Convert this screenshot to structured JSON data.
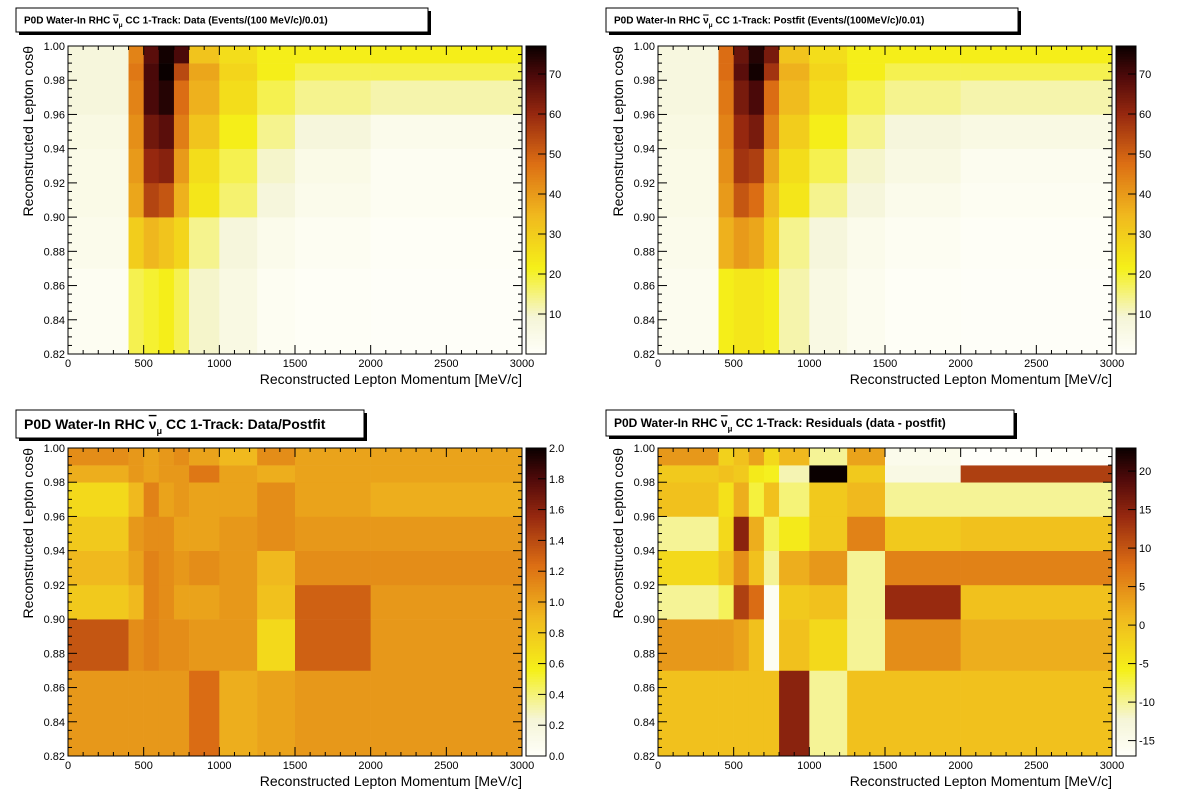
{
  "chart_data": [
    {
      "type": "heatmap",
      "title_parts": [
        "P0D Water-In RHC ",
        "ν",
        "μ",
        " CC 1-Track: Data (Events/(100 MeV/c)/0.01)"
      ],
      "xlabel": "Reconstructed Lepton Momentum [MeV/c]",
      "ylabel": "Reconstructed Lepton cosθ",
      "xlim": [
        0,
        3000
      ],
      "ylim": [
        0.82,
        1.0
      ],
      "zlim": [
        0,
        77
      ],
      "x_ticks": [
        "0",
        "500",
        "1000",
        "1500",
        "2000",
        "2500",
        "3000"
      ],
      "y_ticks": [
        "0.82",
        "0.84",
        "0.86",
        "0.88",
        "0.90",
        "0.92",
        "0.94",
        "0.96",
        "0.98",
        "1.00"
      ],
      "z_ticks": [
        "10",
        "20",
        "30",
        "40",
        "50",
        "60",
        "70"
      ],
      "x_edges": [
        0,
        400,
        500,
        600,
        700,
        800,
        1000,
        1250,
        1500,
        2000,
        3000
      ],
      "y_edges": [
        0.82,
        0.87,
        0.9,
        0.92,
        0.94,
        0.96,
        0.98,
        0.99,
        1.0
      ],
      "values": [
        [
          2,
          18,
          20,
          22,
          18,
          10,
          6,
          2,
          1,
          0.5
        ],
        [
          4,
          30,
          35,
          32,
          28,
          14,
          8,
          4,
          2,
          1
        ],
        [
          5,
          38,
          55,
          52,
          36,
          24,
          16,
          8,
          4,
          2
        ],
        [
          5,
          40,
          60,
          62,
          40,
          26,
          18,
          10,
          5,
          2
        ],
        [
          6,
          42,
          65,
          68,
          45,
          32,
          22,
          14,
          8,
          4
        ],
        [
          8,
          44,
          70,
          74,
          48,
          36,
          26,
          18,
          14,
          12
        ],
        [
          8,
          46,
          70,
          77,
          54,
          38,
          28,
          22,
          18,
          18
        ],
        [
          8,
          44,
          68,
          76,
          70,
          32,
          26,
          22,
          22,
          22
        ]
      ]
    },
    {
      "type": "heatmap",
      "title_parts": [
        "P0D Water-In RHC ",
        "ν",
        "μ",
        " CC 1-Track: Postfit (Events/(100MeV/c)/0.01)"
      ],
      "xlabel": "Reconstructed Lepton Momentum [MeV/c]",
      "ylabel": "Reconstructed Lepton cosθ",
      "xlim": [
        0,
        3000
      ],
      "ylim": [
        0.82,
        1.0
      ],
      "zlim": [
        0,
        77
      ],
      "x_ticks": [
        "0",
        "500",
        "1000",
        "1500",
        "2000",
        "2500",
        "3000"
      ],
      "y_ticks": [
        "0.82",
        "0.84",
        "0.86",
        "0.88",
        "0.90",
        "0.92",
        "0.94",
        "0.96",
        "0.98",
        "1.00"
      ],
      "z_ticks": [
        "10",
        "20",
        "30",
        "40",
        "50",
        "60",
        "70"
      ],
      "x_edges": [
        0,
        400,
        500,
        600,
        700,
        800,
        1000,
        1250,
        1500,
        2000,
        3000
      ],
      "y_edges": [
        0.82,
        0.87,
        0.9,
        0.92,
        0.94,
        0.96,
        0.98,
        0.99,
        1.0
      ],
      "values": [
        [
          3,
          22,
          24,
          24,
          22,
          12,
          6,
          3,
          1,
          0.5
        ],
        [
          4,
          36,
          40,
          38,
          30,
          14,
          8,
          4,
          2,
          1
        ],
        [
          5,
          40,
          52,
          48,
          34,
          24,
          14,
          8,
          4,
          2
        ],
        [
          5,
          42,
          58,
          56,
          38,
          26,
          18,
          10,
          6,
          3
        ],
        [
          6,
          44,
          60,
          64,
          44,
          30,
          22,
          14,
          8,
          6
        ],
        [
          7,
          46,
          64,
          70,
          48,
          34,
          26,
          18,
          14,
          12
        ],
        [
          7,
          48,
          68,
          76,
          58,
          36,
          28,
          22,
          18,
          18
        ],
        [
          7,
          48,
          66,
          74,
          64,
          32,
          26,
          22,
          22,
          22
        ]
      ]
    },
    {
      "type": "heatmap",
      "title_parts": [
        "P0D Water-In RHC ",
        "ν",
        "μ",
        " CC 1-Track: Data/Postfit"
      ],
      "xlabel": "Reconstructed Lepton Momentum [MeV/c]",
      "ylabel": "Reconstructed Lepton cosθ",
      "xlim": [
        0,
        3000
      ],
      "ylim": [
        0.82,
        1.0
      ],
      "zlim": [
        0,
        2.0
      ],
      "x_ticks": [
        "0",
        "500",
        "1000",
        "1500",
        "2000",
        "2500",
        "3000"
      ],
      "y_ticks": [
        "0.82",
        "0.84",
        "0.86",
        "0.88",
        "0.90",
        "0.92",
        "0.94",
        "0.96",
        "0.98",
        "1.00"
      ],
      "z_ticks": [
        "0.0",
        "0.2",
        "0.4",
        "0.6",
        "0.8",
        "1.0",
        "1.2",
        "1.4",
        "1.6",
        "1.8",
        "2.0"
      ],
      "x_edges": [
        0,
        400,
        500,
        600,
        700,
        800,
        1000,
        1250,
        1500,
        2000,
        3000
      ],
      "y_edges": [
        0.82,
        0.87,
        0.9,
        0.92,
        0.94,
        0.96,
        0.98,
        0.99,
        1.0
      ],
      "values": [
        [
          1.05,
          1.05,
          1.05,
          1.05,
          1.05,
          1.25,
          0.95,
          1.0,
          1.05,
          1.05
        ],
        [
          1.35,
          1.1,
          1.15,
          1.1,
          1.1,
          1.05,
          1.05,
          0.7,
          1.3,
          1.05
        ],
        [
          0.8,
          0.9,
          1.15,
          1.1,
          1.0,
          1.0,
          1.05,
          0.85,
          1.3,
          1.05
        ],
        [
          0.9,
          1.0,
          1.15,
          1.1,
          1.05,
          1.1,
          1.05,
          0.9,
          1.1,
          1.1
        ],
        [
          0.8,
          1.05,
          1.1,
          1.1,
          1.0,
          1.0,
          1.05,
          1.1,
          1.05,
          1.05
        ],
        [
          0.7,
          0.9,
          1.15,
          1.0,
          1.05,
          1.0,
          1.0,
          1.1,
          1.0,
          0.95
        ],
        [
          0.95,
          1.05,
          1.0,
          1.05,
          1.05,
          1.2,
          1.0,
          0.95,
          1.0,
          1.0
        ],
        [
          1.1,
          1.05,
          1.0,
          1.05,
          1.1,
          1.0,
          0.9,
          1.1,
          1.0,
          1.0
        ]
      ]
    },
    {
      "type": "heatmap",
      "title_parts": [
        "P0D Water-In RHC ",
        "ν",
        "μ",
        " CC 1-Track: Residuals (data - postfit)"
      ],
      "xlabel": "Reconstructed Lepton Momentum [MeV/c]",
      "ylabel": "Reconstructed Lepton cosθ",
      "xlim": [
        0,
        3000
      ],
      "ylim": [
        0.82,
        1.0
      ],
      "zlim": [
        -17,
        23
      ],
      "x_ticks": [
        "0",
        "500",
        "1000",
        "1500",
        "2000",
        "2500",
        "3000"
      ],
      "y_ticks": [
        "0.82",
        "0.84",
        "0.86",
        "0.88",
        "0.90",
        "0.92",
        "0.94",
        "0.96",
        "0.98",
        "1.00"
      ],
      "z_ticks": [
        "-15",
        "-10",
        "-5",
        "0",
        "5",
        "10",
        "15",
        "20"
      ],
      "x_edges": [
        0,
        400,
        500,
        600,
        700,
        800,
        1000,
        1250,
        1500,
        2000,
        3000
      ],
      "y_edges": [
        0.82,
        0.87,
        0.9,
        0.92,
        0.94,
        0.96,
        0.98,
        0.99,
        1.0
      ],
      "values": [
        [
          0,
          0,
          0,
          0,
          0,
          15,
          -10,
          0,
          0,
          0
        ],
        [
          4,
          4,
          3,
          0,
          -16,
          0,
          -3,
          -10,
          5,
          2
        ],
        [
          -10,
          -8,
          12,
          8,
          -16,
          -1,
          0,
          -10,
          14,
          0
        ],
        [
          -3,
          0,
          5,
          0,
          -10,
          2,
          4,
          -10,
          6,
          6
        ],
        [
          -10,
          -3,
          15,
          2,
          -8,
          -5,
          -1,
          6,
          -1,
          0
        ],
        [
          0,
          -4,
          2,
          -7,
          0,
          -9,
          -1,
          1,
          -10,
          -10
        ],
        [
          -1,
          0,
          -1,
          -5,
          -6,
          -11,
          23,
          -1,
          -14,
          12
        ],
        [
          4,
          -2,
          0,
          3,
          -3,
          1,
          -10,
          3,
          -15,
          -17
        ]
      ]
    }
  ]
}
